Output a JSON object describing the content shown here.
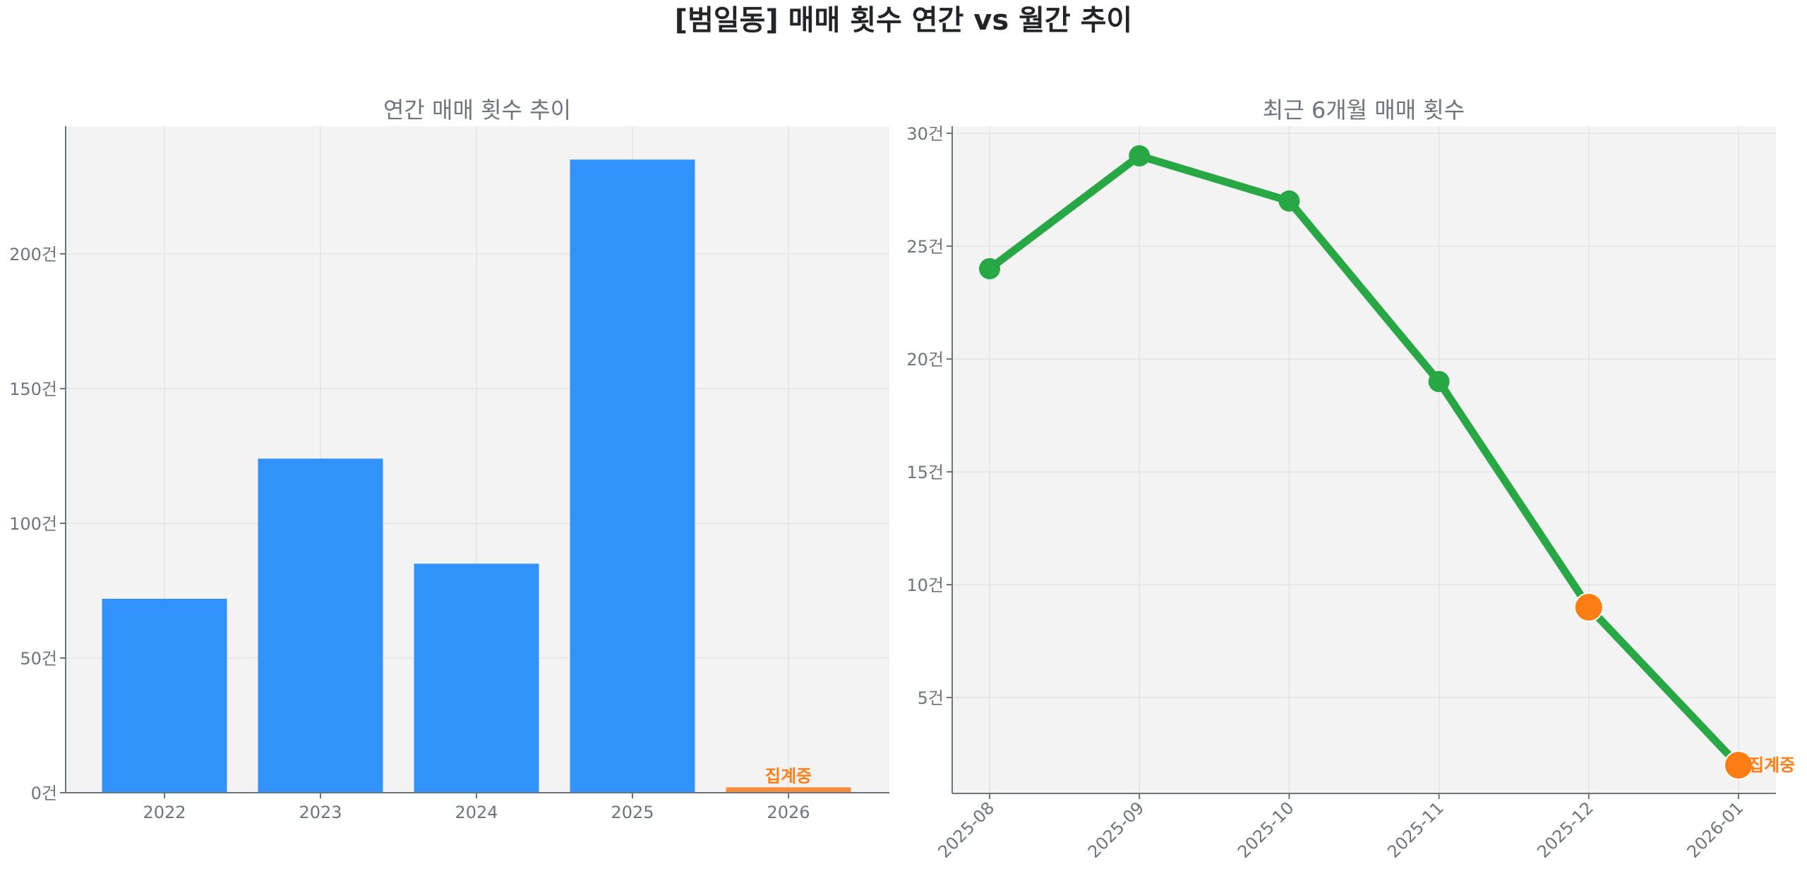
{
  "figure": {
    "title": "[범일동] 매매 횟수 연간 vs 월간 추이",
    "background": "#ffffff",
    "plot_background": "#f3f3f3"
  },
  "chart_data": [
    {
      "type": "bar",
      "title": "연간 매매 횟수 추이",
      "xlabel": "",
      "ylabel": "",
      "categories": [
        "2022",
        "2023",
        "2024",
        "2025",
        "2026"
      ],
      "values": [
        72,
        124,
        85,
        235,
        2
      ],
      "colors": [
        "#3192fb",
        "#3192fb",
        "#3192fb",
        "#3192fb",
        "#fd8c3c"
      ],
      "y_ticks": [
        0,
        50,
        100,
        150,
        200
      ],
      "y_tick_labels": [
        "0건",
        "50건",
        "100건",
        "150건",
        "200건"
      ],
      "ylim": [
        0,
        247
      ],
      "grid": true,
      "annotations": [
        {
          "category": "2026",
          "text": "집계중",
          "color": "#fd7e14"
        }
      ]
    },
    {
      "type": "line",
      "title": "최근 6개월 매매 횟수",
      "xlabel": "",
      "ylabel": "",
      "x": [
        "2025-08",
        "2025-09",
        "2025-10",
        "2025-11",
        "2025-12",
        "2026-01"
      ],
      "series": [
        {
          "name": "매매 횟수",
          "values": [
            24,
            29,
            27,
            19,
            9,
            2
          ],
          "color": "#28a745"
        }
      ],
      "highlight_points": [
        {
          "x": "2025-12",
          "value": 9,
          "color": "#fd7e14"
        },
        {
          "x": "2026-01",
          "value": 2,
          "color": "#fd7e14"
        }
      ],
      "y_ticks": [
        5,
        10,
        15,
        20,
        25,
        30
      ],
      "y_tick_labels": [
        "5건",
        "10건",
        "15건",
        "20건",
        "25건",
        "30건"
      ],
      "ylim": [
        0.9,
        30.3
      ],
      "grid": true,
      "annotations": [
        {
          "x": "2026-01",
          "text": "집계중",
          "color": "#fd7e14"
        }
      ]
    }
  ]
}
